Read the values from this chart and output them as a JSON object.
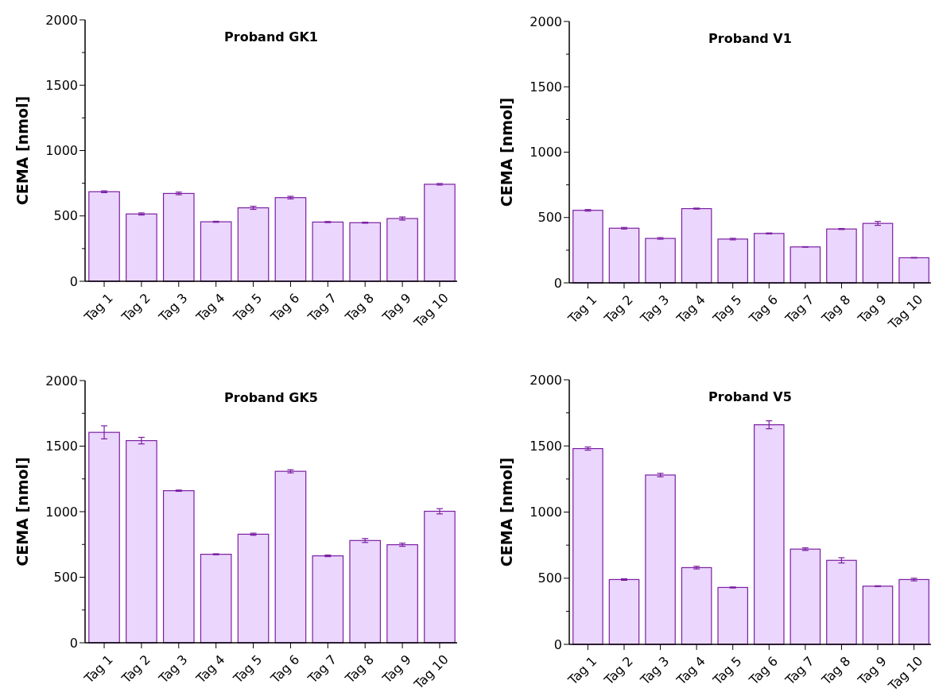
{
  "chart_data": [
    {
      "type": "bar",
      "title": "Proband GK1",
      "ylabel": "CEMA [nmol]",
      "categories": [
        "Tag 1",
        "Tag 2",
        "Tag 3",
        "Tag 4",
        "Tag 5",
        "Tag 6",
        "Tag 7",
        "Tag 8",
        "Tag 9",
        "Tag 10"
      ],
      "values": [
        685,
        515,
        672,
        455,
        562,
        640,
        453,
        448,
        480,
        742
      ],
      "errors": [
        7,
        8,
        10,
        4,
        12,
        10,
        4,
        4,
        12,
        6
      ],
      "color": "#ebd6fd",
      "ylim": [
        0,
        2000
      ],
      "yticks": [
        0,
        {
          "value": 250,
          "label": null
        },
        500,
        {
          "value": 750,
          "label": null
        },
        1000,
        {
          "value": 1250,
          "label": null
        },
        1500,
        {
          "value": 1750,
          "label": null
        },
        2000
      ],
      "grid": false
    },
    {
      "type": "bar",
      "title": "Proband V1",
      "ylabel": "CEMA [nmol]",
      "categories": [
        "Tag 1",
        "Tag 2",
        "Tag 3",
        "Tag 4",
        "Tag 5",
        "Tag 6",
        "Tag 7",
        "Tag 8",
        "Tag 9",
        "Tag 10"
      ],
      "values": [
        555,
        418,
        340,
        568,
        335,
        378,
        275,
        412,
        455,
        192
      ],
      "errors": [
        6,
        6,
        6,
        4,
        6,
        4,
        2,
        4,
        15,
        2
      ],
      "color": "#ebd6fd",
      "ylim": [
        0,
        2000
      ],
      "yticks": [
        0,
        {
          "value": 250,
          "label": null
        },
        500,
        {
          "value": 750,
          "label": null
        },
        1000,
        {
          "value": 1250,
          "label": null
        },
        1500,
        {
          "value": 1750,
          "label": null
        },
        2000
      ],
      "grid": false
    },
    {
      "type": "bar",
      "title": "Proband GK5",
      "ylabel": "CEMA [nmol]",
      "categories": [
        "Tag 1",
        "Tag 2",
        "Tag 3",
        "Tag 4",
        "Tag 5",
        "Tag 6",
        "Tag 7",
        "Tag 8",
        "Tag 9",
        "Tag 10"
      ],
      "values": [
        1605,
        1542,
        1160,
        675,
        828,
        1308,
        663,
        780,
        748,
        1003
      ],
      "errors": [
        50,
        25,
        5,
        4,
        8,
        12,
        6,
        15,
        12,
        20
      ],
      "color": "#ebd6fd",
      "ylim": [
        0,
        2000
      ],
      "yticks": [
        0,
        {
          "value": 250,
          "label": null
        },
        500,
        {
          "value": 750,
          "label": null
        },
        1000,
        {
          "value": 1250,
          "label": null
        },
        1500,
        {
          "value": 1750,
          "label": null
        },
        2000
      ],
      "grid": false
    },
    {
      "type": "bar",
      "title": "Proband V5",
      "ylabel": "CEMA [nmol]",
      "categories": [
        "Tag 1",
        "Tag 2",
        "Tag 3",
        "Tag 4",
        "Tag 5",
        "Tag 6",
        "Tag 7",
        "Tag 8",
        "Tag 9",
        "Tag 10"
      ],
      "values": [
        1480,
        490,
        1280,
        580,
        430,
        1660,
        720,
        635,
        440,
        490
      ],
      "errors": [
        12,
        6,
        13,
        10,
        4,
        30,
        10,
        20,
        3,
        10
      ],
      "color": "#ebd6fd",
      "ylim": [
        0,
        2000
      ],
      "yticks": [
        0,
        {
          "value": 250,
          "label": null
        },
        500,
        {
          "value": 750,
          "label": null
        },
        1000,
        {
          "value": 1250,
          "label": null
        },
        1500,
        {
          "value": 1750,
          "label": null
        },
        2000
      ],
      "grid": false
    }
  ]
}
